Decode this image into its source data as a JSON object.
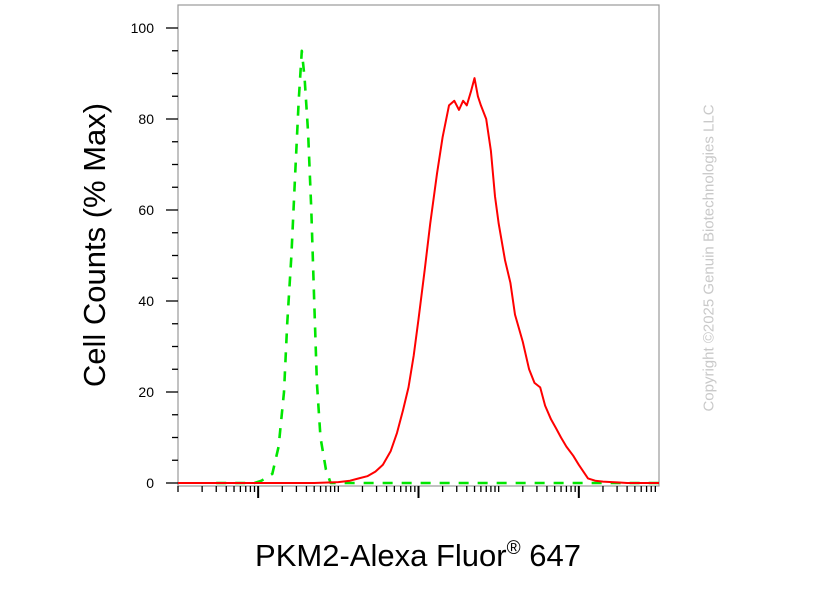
{
  "chart_data": {
    "type": "line",
    "title": "",
    "ylabel": "Cell Counts (% Max)",
    "xlabel": {
      "text": "PKM2-Alexa Fluor",
      "registered": "®",
      "suffix": "647"
    },
    "yticks": [
      "0",
      "20",
      "40",
      "60",
      "80",
      "100"
    ],
    "ylim": [
      0,
      100
    ],
    "xscale": "log",
    "xlim": [
      10,
      10000000
    ],
    "x_major_ticks": [
      100,
      10000,
      1000000
    ],
    "grid": false,
    "legend": "none",
    "series": [
      {
        "color": "#00e600",
        "line_style": "dashed",
        "x": [
          30,
          50,
          70,
          90,
          110,
          150,
          180,
          210,
          230,
          260,
          290,
          320,
          350,
          380,
          420,
          460,
          500,
          540,
          600,
          700,
          800,
          1000,
          3000,
          30000,
          1000000,
          10000000
        ],
        "y": [
          0,
          0,
          0,
          0,
          0.5,
          2,
          8,
          20,
          35,
          50,
          68,
          84,
          95,
          89,
          77,
          60,
          40,
          22,
          10,
          3,
          0,
          0,
          0,
          0,
          0,
          0
        ]
      },
      {
        "color": "#ff0000",
        "line_style": "solid",
        "x": [
          10,
          500,
          1000,
          1400,
          1800,
          2300,
          2900,
          3600,
          4500,
          5400,
          6400,
          7500,
          8700,
          10000,
          12000,
          14000,
          17000,
          20000,
          24000,
          28000,
          32000,
          36000,
          40000,
          45000,
          50000,
          55000,
          60000,
          70000,
          80000,
          90000,
          100000,
          120000,
          140000,
          160000,
          200000,
          240000,
          280000,
          330000,
          380000,
          450000,
          520000,
          600000,
          700000,
          850000,
          1000000,
          1300000,
          1600000,
          2000000,
          2600000,
          3200000,
          4000000,
          5000000,
          6000000,
          7000000,
          10000000
        ],
        "y": [
          0,
          0,
          0.2,
          0.5,
          1,
          1.5,
          2.5,
          4,
          7,
          11,
          16,
          21,
          28,
          36,
          47,
          57,
          68,
          76,
          83,
          84,
          82,
          84,
          83,
          86,
          89,
          85,
          83,
          80,
          73,
          63,
          57,
          49,
          44,
          37,
          31,
          25,
          22,
          21,
          17,
          14,
          12,
          10,
          8,
          6,
          4,
          1,
          0.5,
          0.3,
          0.2,
          0.1,
          0,
          0,
          0,
          0,
          0
        ]
      }
    ]
  },
  "watermark": {
    "copyright": "Copyright ©2025 Genuin Biotechnologies LLC"
  }
}
